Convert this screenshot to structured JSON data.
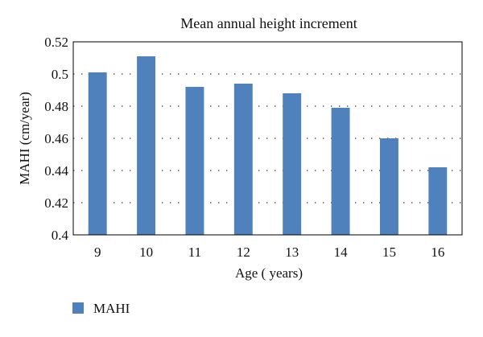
{
  "chart_data": {
    "type": "bar",
    "title": "Mean annual height increment",
    "xlabel": "Age ( years)",
    "ylabel": "MAHI (cm/year)",
    "categories": [
      "9",
      "10",
      "11",
      "12",
      "13",
      "14",
      "15",
      "16"
    ],
    "series": [
      {
        "name": "MAHI",
        "values": [
          0.501,
          0.511,
          0.492,
          0.494,
          0.488,
          0.479,
          0.46,
          0.442
        ],
        "color": "#4F81BD"
      }
    ],
    "ylim": [
      0.4,
      0.52
    ],
    "yticks": [
      "0.4",
      "0.42",
      "0.44",
      "0.46",
      "0.48",
      "0.5",
      "0.52"
    ],
    "grid": "horizontal-dotted",
    "legend": "bottom-left"
  }
}
